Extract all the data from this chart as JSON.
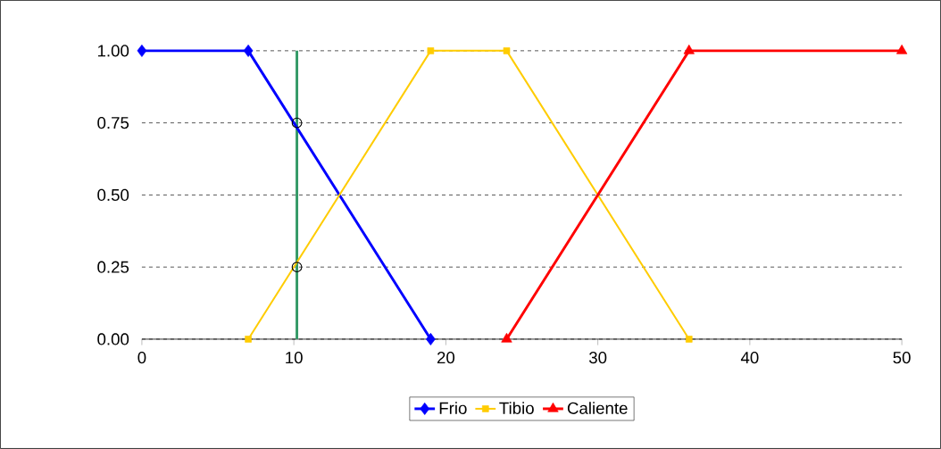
{
  "chart_data": {
    "type": "line",
    "series": [
      {
        "name": "Frio",
        "color": "#0000ff",
        "marker": "diamond",
        "x": [
          0,
          7,
          19
        ],
        "values": [
          1,
          1,
          0
        ]
      },
      {
        "name": "Tibio",
        "color": "#ffcc00",
        "marker": "square",
        "x": [
          7,
          19,
          24,
          36
        ],
        "values": [
          0,
          1,
          1,
          0
        ]
      },
      {
        "name": "Caliente",
        "color": "#ff0000",
        "marker": "triangle",
        "x": [
          24,
          36,
          50
        ],
        "values": [
          0,
          1,
          1
        ]
      },
      {
        "type": "scatter",
        "color": "#000000",
        "marker": "circle",
        "x": [
          10.2,
          10.2
        ],
        "values": [
          0.75,
          0.25
        ]
      }
    ],
    "ref_lines": [
      {
        "axis": "x",
        "value": 10.2,
        "color": "#339966",
        "line_style": "solid"
      }
    ],
    "xlim": [
      0,
      50
    ],
    "xticks": [
      0,
      10,
      20,
      30,
      40,
      50
    ],
    "ylim": [
      0,
      1
    ],
    "yticks": [
      {
        "value": 0,
        "label": "0.00"
      },
      {
        "value": 0.25,
        "label": "0.25"
      },
      {
        "value": 0.5,
        "label": "0.50"
      },
      {
        "value": 0.75,
        "label": "0.75"
      },
      {
        "value": 1,
        "label": "1.00"
      }
    ],
    "grid": "y",
    "legend": "bottom",
    "line_style": "solid"
  }
}
